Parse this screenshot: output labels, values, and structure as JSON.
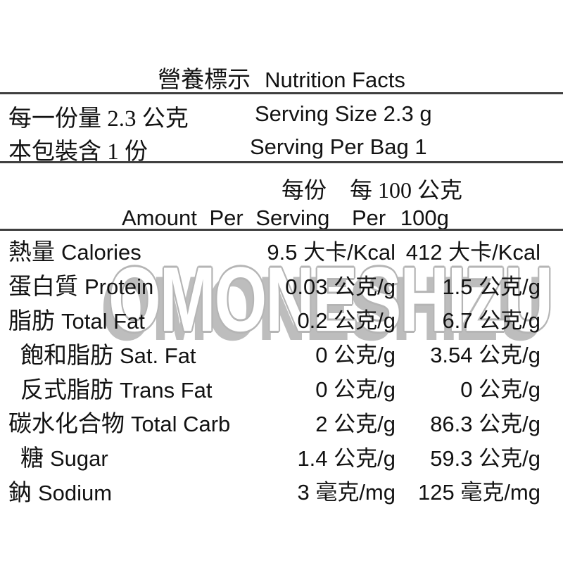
{
  "title": {
    "zh": "營養標示",
    "en": "Nutrition Facts"
  },
  "serving": {
    "size_zh": "每一份量 2.3 公克",
    "size_en": "Serving Size 2.3 g",
    "per_bag_zh": "本包裝含 1 份",
    "per_bag_en": "Serving Per Bag 1"
  },
  "columns": {
    "per_serving_zh": "每份",
    "per_100_zh": "每 100 公克",
    "per_serving_en": "Amount Per Serving",
    "per_100_en": "Per 100g"
  },
  "rows": [
    {
      "label_zh": "熱量",
      "label_en": "Calories",
      "per_serving": "9.5 大卡/Kcal",
      "per_100": "412 大卡/Kcal"
    },
    {
      "label_zh": "蛋白質",
      "label_en": "Protein",
      "per_serving": "0.03 公克/g",
      "per_100": "1.5 公克/g"
    },
    {
      "label_zh": "脂肪",
      "label_en": "Total Fat",
      "per_serving": "0.2 公克/g",
      "per_100": "6.7 公克/g"
    },
    {
      "label_zh": "飽和脂肪",
      "label_en": "Sat. Fat",
      "per_serving": "0 公克/g",
      "per_100": "3.54 公克/g"
    },
    {
      "label_zh": "反式脂肪",
      "label_en": "Trans Fat",
      "per_serving": "0 公克/g",
      "per_100": "0 公克/g"
    },
    {
      "label_zh": "碳水化合物",
      "label_en": "Total Carb",
      "per_serving": "2 公克/g",
      "per_100": "86.3 公克/g"
    },
    {
      "label_zh": "糖",
      "label_en": "Sugar",
      "per_serving": "1.4 公克/g",
      "per_100": "59.3 公克/g"
    },
    {
      "label_zh": "鈉",
      "label_en": "Sodium",
      "per_serving": "3 毫克/mg",
      "per_100": "125 毫克/mg"
    }
  ],
  "watermark": "OMONESHIZU",
  "colors": {
    "text": "#121212",
    "rule": "#3f3f3f",
    "watermark": "#b5b5b5"
  }
}
